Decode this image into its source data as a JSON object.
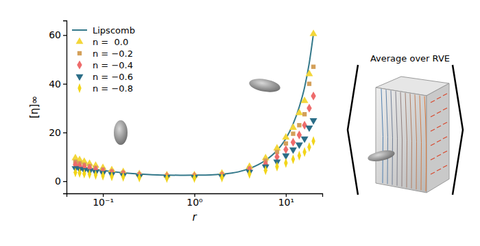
{
  "chart_data": {
    "type": "scatter",
    "x_label": "r",
    "y_label": "[η]∞",
    "log": "x",
    "xlim": [
      0.04,
      25
    ],
    "ylim": [
      -5,
      66
    ],
    "xticks": [
      {
        "value": 0.1,
        "label": "10⁻¹"
      },
      {
        "value": 1,
        "label": "10⁰"
      },
      {
        "value": 10,
        "label": "10¹"
      }
    ],
    "yticks": [
      0,
      20,
      40,
      60
    ],
    "legend": "upper left",
    "annotations": [
      {
        "text": "Average over RVE"
      }
    ],
    "series": [
      {
        "name": "Lipscomb",
        "type": "line",
        "color": "#33788a",
        "x": [
          0.05,
          0.07,
          0.1,
          0.15,
          0.2,
          0.3,
          0.5,
          0.7,
          1,
          1.5,
          2,
          3,
          4,
          5,
          6,
          8,
          10,
          12,
          14,
          16,
          18,
          20
        ],
        "values": [
          6.3,
          5.3,
          4.4,
          3.6,
          3.2,
          2.8,
          2.5,
          2.45,
          2.5,
          2.6,
          2.9,
          3.8,
          5.2,
          6.8,
          8.6,
          12.6,
          17.5,
          23.5,
          30.5,
          38.5,
          48.5,
          60.5
        ]
      },
      {
        "name": "n =  0.0",
        "type": "scatter",
        "marker": "triangle-up",
        "color": "#f3d63a",
        "x": [
          0.05,
          0.0556,
          0.0625,
          0.0714,
          0.0833,
          0.1,
          0.125,
          0.1667,
          0.25,
          0.5,
          1,
          2,
          4,
          6,
          8,
          10,
          12,
          14,
          16,
          18,
          20
        ],
        "values": [
          9.5,
          8.7,
          8.0,
          7.2,
          6.4,
          5.5,
          4.6,
          3.8,
          3.0,
          2.5,
          2.5,
          3.2,
          6.0,
          9.5,
          13.5,
          18.0,
          22.0,
          28.0,
          33.0,
          44.0,
          60.5
        ]
      },
      {
        "name": "n = −0.2",
        "type": "scatter",
        "marker": "square",
        "color": "#d4a05a",
        "x": [
          0.05,
          0.0556,
          0.0625,
          0.0714,
          0.0833,
          0.1,
          0.125,
          0.1667,
          0.25,
          0.5,
          1,
          2,
          4,
          6,
          8,
          10,
          12,
          14,
          16,
          18,
          20
        ],
        "values": [
          8.0,
          7.4,
          6.8,
          6.2,
          5.5,
          4.8,
          4.0,
          3.4,
          2.7,
          2.2,
          2.2,
          2.7,
          5.2,
          8.5,
          12.0,
          15.5,
          19.5,
          23.0,
          27.5,
          40.0,
          47.0
        ]
      },
      {
        "name": "n = −0.4",
        "type": "scatter",
        "marker": "diamond",
        "color": "#ee6b6b",
        "x": [
          0.05,
          0.0556,
          0.0625,
          0.0714,
          0.0833,
          0.1,
          0.125,
          0.1667,
          0.25,
          0.5,
          1,
          2,
          4,
          6,
          8,
          10,
          12,
          14,
          16,
          18,
          20
        ],
        "values": [
          6.8,
          6.3,
          5.8,
          5.3,
          4.7,
          4.1,
          3.5,
          3.0,
          2.4,
          2.0,
          2.0,
          2.4,
          4.6,
          7.0,
          10.0,
          13.0,
          16.0,
          19.0,
          23.0,
          30.0,
          35.0
        ]
      },
      {
        "name": "n = −0.6",
        "type": "scatter",
        "marker": "triangle-down",
        "color": "#2b6d87",
        "x": [
          0.05,
          0.0556,
          0.0625,
          0.0714,
          0.0833,
          0.1,
          0.125,
          0.1667,
          0.25,
          0.5,
          1,
          2,
          4,
          6,
          8,
          10,
          12,
          14,
          16,
          18,
          20
        ],
        "values": [
          5.3,
          4.9,
          4.5,
          4.1,
          3.7,
          3.3,
          2.8,
          2.4,
          2.0,
          1.7,
          1.7,
          2.0,
          3.8,
          6.0,
          8.0,
          10.5,
          13.0,
          15.0,
          17.5,
          22.0,
          25.0
        ]
      },
      {
        "name": "n = −0.8",
        "type": "scatter",
        "marker": "thin-diamond",
        "color": "#f2d51a",
        "x": [
          0.05,
          0.0556,
          0.0625,
          0.0714,
          0.0833,
          0.1,
          0.125,
          0.1667,
          0.25,
          0.5,
          1,
          2,
          4,
          6,
          8,
          10,
          12,
          14,
          16,
          18,
          20
        ],
        "values": [
          3.6,
          3.4,
          3.1,
          2.9,
          2.6,
          2.3,
          2.0,
          1.8,
          1.5,
          1.3,
          1.3,
          1.5,
          3.0,
          4.5,
          6.0,
          7.5,
          9.0,
          10.5,
          12.0,
          14.0,
          16.5
        ]
      }
    ]
  }
}
